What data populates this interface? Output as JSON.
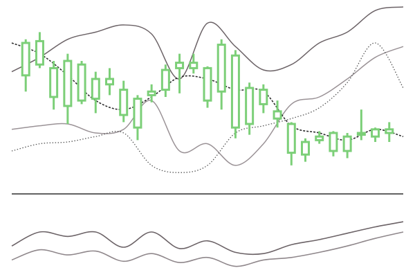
{
  "colors": {
    "background": "#ffffff",
    "candle": "#7ccf78",
    "upper_band": "#6b6266",
    "lower_band": "#9a9296",
    "middle_band": "#2b2b2b",
    "dotted_line": "#555555",
    "divider": "#2f2f2f",
    "indicator_line_1": "#6b6266",
    "indicator_line_2": "#8f878b"
  },
  "chart_data": [
    {
      "type": "candlestick",
      "title": "",
      "xlabel": "",
      "ylabel": "",
      "grid": false,
      "legend": "none",
      "x": [
        1,
        2,
        3,
        4,
        5,
        6,
        7,
        8,
        9,
        10,
        11,
        12,
        13,
        14,
        15,
        16,
        17,
        18,
        19,
        20,
        21,
        22,
        23,
        24,
        25,
        26,
        27
      ],
      "ylim": [
        0,
        100
      ],
      "candles": [
        {
          "open": 62,
          "high": 82,
          "low": 53,
          "close": 80
        },
        {
          "open": 81,
          "high": 86,
          "low": 66,
          "close": 68
        },
        {
          "open": 66,
          "high": 70,
          "low": 43,
          "close": 50
        },
        {
          "open": 70,
          "high": 74,
          "low": 35,
          "close": 45
        },
        {
          "open": 48,
          "high": 70,
          "low": 46,
          "close": 68
        },
        {
          "open": 60,
          "high": 64,
          "low": 41,
          "close": 49
        },
        {
          "open": 57,
          "high": 66,
          "low": 51,
          "close": 60
        },
        {
          "open": 54,
          "high": 59,
          "low": 36,
          "close": 40
        },
        {
          "open": 49,
          "high": 51,
          "low": 26,
          "close": 33
        },
        {
          "open": 51,
          "high": 57,
          "low": 47,
          "close": 53
        },
        {
          "open": 54,
          "high": 68,
          "low": 50,
          "close": 65
        },
        {
          "open": 66,
          "high": 74,
          "low": 52,
          "close": 69
        },
        {
          "open": 66,
          "high": 74,
          "low": 63,
          "close": 69
        },
        {
          "open": 48,
          "high": 67,
          "low": 44,
          "close": 66
        },
        {
          "open": 79,
          "high": 82,
          "low": 43,
          "close": 53
        },
        {
          "open": 73,
          "high": 76,
          "low": 27,
          "close": 33
        },
        {
          "open": 55,
          "high": 58,
          "low": 29,
          "close": 35
        },
        {
          "open": 54,
          "high": 57,
          "low": 41,
          "close": 46
        },
        {
          "open": 42,
          "high": 48,
          "low": 33,
          "close": 38
        },
        {
          "open": 35,
          "high": 36,
          "low": 12,
          "close": 19
        },
        {
          "open": 25,
          "high": 27,
          "low": 14,
          "close": 18
        },
        {
          "open": 26,
          "high": 31,
          "low": 24,
          "close": 28
        },
        {
          "open": 30,
          "high": 31,
          "low": 17,
          "close": 20
        },
        {
          "open": 20,
          "high": 30,
          "low": 16,
          "close": 28
        },
        {
          "open": 29,
          "high": 43,
          "low": 26,
          "close": 30
        },
        {
          "open": 28,
          "high": 33,
          "low": 25,
          "close": 32
        },
        {
          "open": 32,
          "high": 36,
          "low": 25,
          "close": 30
        }
      ],
      "overlays": [
        {
          "style": "solid-dark",
          "color_key": "upper_band",
          "x": [
            0,
            2,
            4,
            6,
            8,
            10,
            12,
            14,
            16,
            18,
            20,
            22,
            24,
            26,
            28
          ],
          "y": [
            64,
            72,
            82,
            86,
            90,
            85,
            60,
            91,
            78,
            65,
            68,
            80,
            86,
            98,
            100
          ]
        },
        {
          "style": "solid-light",
          "color_key": "lower_band",
          "x": [
            0,
            2,
            4,
            6,
            8,
            10,
            12,
            14,
            16,
            18,
            20,
            22,
            24,
            26,
            28
          ],
          "y": [
            32,
            34,
            35,
            30,
            32,
            48,
            20,
            24,
            12,
            24,
            46,
            50,
            60,
            72,
            78
          ]
        },
        {
          "style": "dashed",
          "color_key": "middle_band",
          "x": [
            0,
            2,
            4,
            6,
            8,
            10,
            12,
            14,
            16,
            18,
            20,
            22,
            24,
            26,
            28
          ],
          "y": [
            80,
            74,
            62,
            48,
            43,
            50,
            61,
            60,
            54,
            53,
            34,
            30,
            26,
            32,
            28
          ]
        },
        {
          "style": "dotted",
          "color_key": "dotted_line",
          "x": [
            0,
            2,
            4,
            6,
            8,
            10,
            12,
            14,
            16,
            18,
            20,
            22,
            24,
            26,
            28
          ],
          "y": [
            20,
            24,
            25,
            28,
            30,
            12,
            8,
            12,
            30,
            34,
            38,
            44,
            58,
            80,
            55
          ]
        }
      ]
    },
    {
      "type": "line",
      "title": "",
      "xlabel": "",
      "ylabel": "",
      "grid": false,
      "legend": "none",
      "ylim": [
        0,
        100
      ],
      "series": [
        {
          "color_key": "indicator_line_1",
          "x": [
            0,
            2,
            4,
            6,
            8,
            10,
            12,
            14,
            16,
            18,
            20,
            22,
            24,
            26,
            28
          ],
          "y": [
            40,
            62,
            55,
            62,
            38,
            62,
            36,
            48,
            30,
            28,
            42,
            50,
            60,
            70,
            78
          ]
        },
        {
          "color_key": "indicator_line_2",
          "x": [
            0,
            2,
            4,
            6,
            8,
            10,
            12,
            14,
            16,
            18,
            20,
            22,
            24,
            26,
            28
          ],
          "y": [
            18,
            34,
            26,
            32,
            16,
            28,
            14,
            22,
            8,
            18,
            22,
            30,
            40,
            52,
            62
          ]
        }
      ]
    }
  ]
}
